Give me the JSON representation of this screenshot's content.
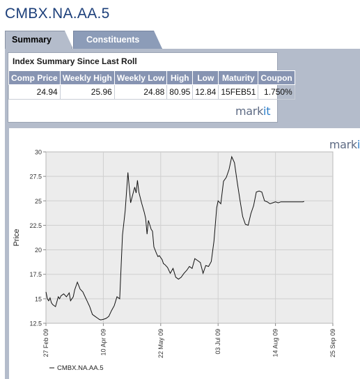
{
  "page": {
    "title": "CMBX.NA.AA.5"
  },
  "tabs": [
    {
      "label": "Summary",
      "active": true
    },
    {
      "label": "Constituents",
      "active": false
    }
  ],
  "summary": {
    "heading": "Index Summary Since Last Roll",
    "headers": [
      "Comp Price",
      "Weekly High",
      "Weekly Low",
      "High",
      "Low",
      "Maturity",
      "Coupon"
    ],
    "values": [
      "24.94",
      "25.96",
      "24.88",
      "80.95",
      "12.84",
      "15FEB51",
      "1.750%"
    ],
    "brand": {
      "main": "mark",
      "accent": "it"
    }
  },
  "colors": {
    "header_bg": "#8794b2",
    "frame": "#b4bccb",
    "title": "#1c3f7a",
    "plot_bg": "#ececec"
  },
  "chart_data": {
    "type": "line",
    "title": "",
    "xlabel": "",
    "ylabel": "Price",
    "ylim": [
      12.5,
      30
    ],
    "yticks": [
      "12.5",
      "15",
      "17.5",
      "20",
      "22.5",
      "25",
      "27.5",
      "30"
    ],
    "xticks": [
      "27 Feb 09",
      "10 Apr 09",
      "22 May 09",
      "03 Jul 09",
      "14 Aug 09",
      "25 Sep 09"
    ],
    "xlim": [
      "2009-02-27",
      "2009-09-25"
    ],
    "grid": true,
    "legend": "bottom-left",
    "brand": {
      "main": "mark",
      "accent": "it"
    },
    "series": [
      {
        "name": "CMBX.NA.AA.5",
        "x": [
          "2009-02-27",
          "2009-02-28",
          "2009-03-01",
          "2009-03-02",
          "2009-03-03",
          "2009-03-04",
          "2009-03-06",
          "2009-03-08",
          "2009-03-09",
          "2009-03-10",
          "2009-03-12",
          "2009-03-14",
          "2009-03-16",
          "2009-03-17",
          "2009-03-19",
          "2009-03-20",
          "2009-03-22",
          "2009-03-24",
          "2009-03-26",
          "2009-03-28",
          "2009-03-29",
          "2009-03-31",
          "2009-04-02",
          "2009-04-04",
          "2009-04-06",
          "2009-04-07",
          "2009-04-08",
          "2009-04-10",
          "2009-04-12",
          "2009-04-14",
          "2009-04-16",
          "2009-04-18",
          "2009-04-20",
          "2009-04-22",
          "2009-04-24",
          "2009-04-26",
          "2009-04-28",
          "2009-04-30",
          "2009-05-02",
          "2009-05-03",
          "2009-05-04",
          "2009-05-05",
          "2009-05-06",
          "2009-05-08",
          "2009-05-10",
          "2009-05-11",
          "2009-05-12",
          "2009-05-13",
          "2009-05-15",
          "2009-05-16",
          "2009-05-17",
          "2009-05-19",
          "2009-05-20",
          "2009-05-21",
          "2009-05-23",
          "2009-05-24",
          "2009-05-25",
          "2009-05-27",
          "2009-05-29",
          "2009-05-31",
          "2009-06-02",
          "2009-06-04",
          "2009-06-06",
          "2009-06-08",
          "2009-06-10",
          "2009-06-12",
          "2009-06-14",
          "2009-06-16",
          "2009-06-18",
          "2009-06-20",
          "2009-06-22",
          "2009-06-24",
          "2009-06-26",
          "2009-06-28",
          "2009-06-30",
          "2009-07-02",
          "2009-07-03",
          "2009-07-05",
          "2009-07-07",
          "2009-07-09",
          "2009-07-11",
          "2009-07-13",
          "2009-07-15",
          "2009-07-17",
          "2009-07-19",
          "2009-07-21",
          "2009-07-23",
          "2009-07-25",
          "2009-07-27",
          "2009-07-29",
          "2009-07-31",
          "2009-08-02",
          "2009-08-04",
          "2009-08-06",
          "2009-08-08",
          "2009-08-10",
          "2009-08-12",
          "2009-08-14",
          "2009-08-16",
          "2009-08-18",
          "2009-08-20",
          "2009-08-22",
          "2009-08-24",
          "2009-08-26",
          "2009-08-28",
          "2009-08-30",
          "2009-09-01",
          "2009-09-03",
          "2009-09-04"
        ],
        "y": [
          15.7,
          15.0,
          14.8,
          15.1,
          14.6,
          14.4,
          14.2,
          15.2,
          15.0,
          15.3,
          15.5,
          15.2,
          15.6,
          14.8,
          15.2,
          15.9,
          16.7,
          16.0,
          15.7,
          15.1,
          14.8,
          14.2,
          13.4,
          13.2,
          13.0,
          12.9,
          12.85,
          12.9,
          13.0,
          13.2,
          13.8,
          14.3,
          15.2,
          15.0,
          21.5,
          24.0,
          27.9,
          24.8,
          25.9,
          26.4,
          25.8,
          27.1,
          25.9,
          24.8,
          23.8,
          23.2,
          21.6,
          23.0,
          22.1,
          21.9,
          20.3,
          19.6,
          19.3,
          19.4,
          19.0,
          18.6,
          18.5,
          18.2,
          17.6,
          18.1,
          17.2,
          17.0,
          17.2,
          17.6,
          17.9,
          18.3,
          18.1,
          19.1,
          18.9,
          18.7,
          17.6,
          18.4,
          18.3,
          18.8,
          20.9,
          24.3,
          25.0,
          24.7,
          27.0,
          27.4,
          28.2,
          29.5,
          28.9,
          26.9,
          25.1,
          23.4,
          22.6,
          22.5,
          23.7,
          24.5,
          25.9,
          26.0,
          25.9,
          25.0,
          24.9,
          24.7,
          24.8,
          24.9,
          24.8,
          24.9,
          24.9,
          24.9,
          24.9,
          24.9,
          24.9,
          24.9,
          24.9,
          24.9,
          24.94
        ]
      }
    ]
  }
}
